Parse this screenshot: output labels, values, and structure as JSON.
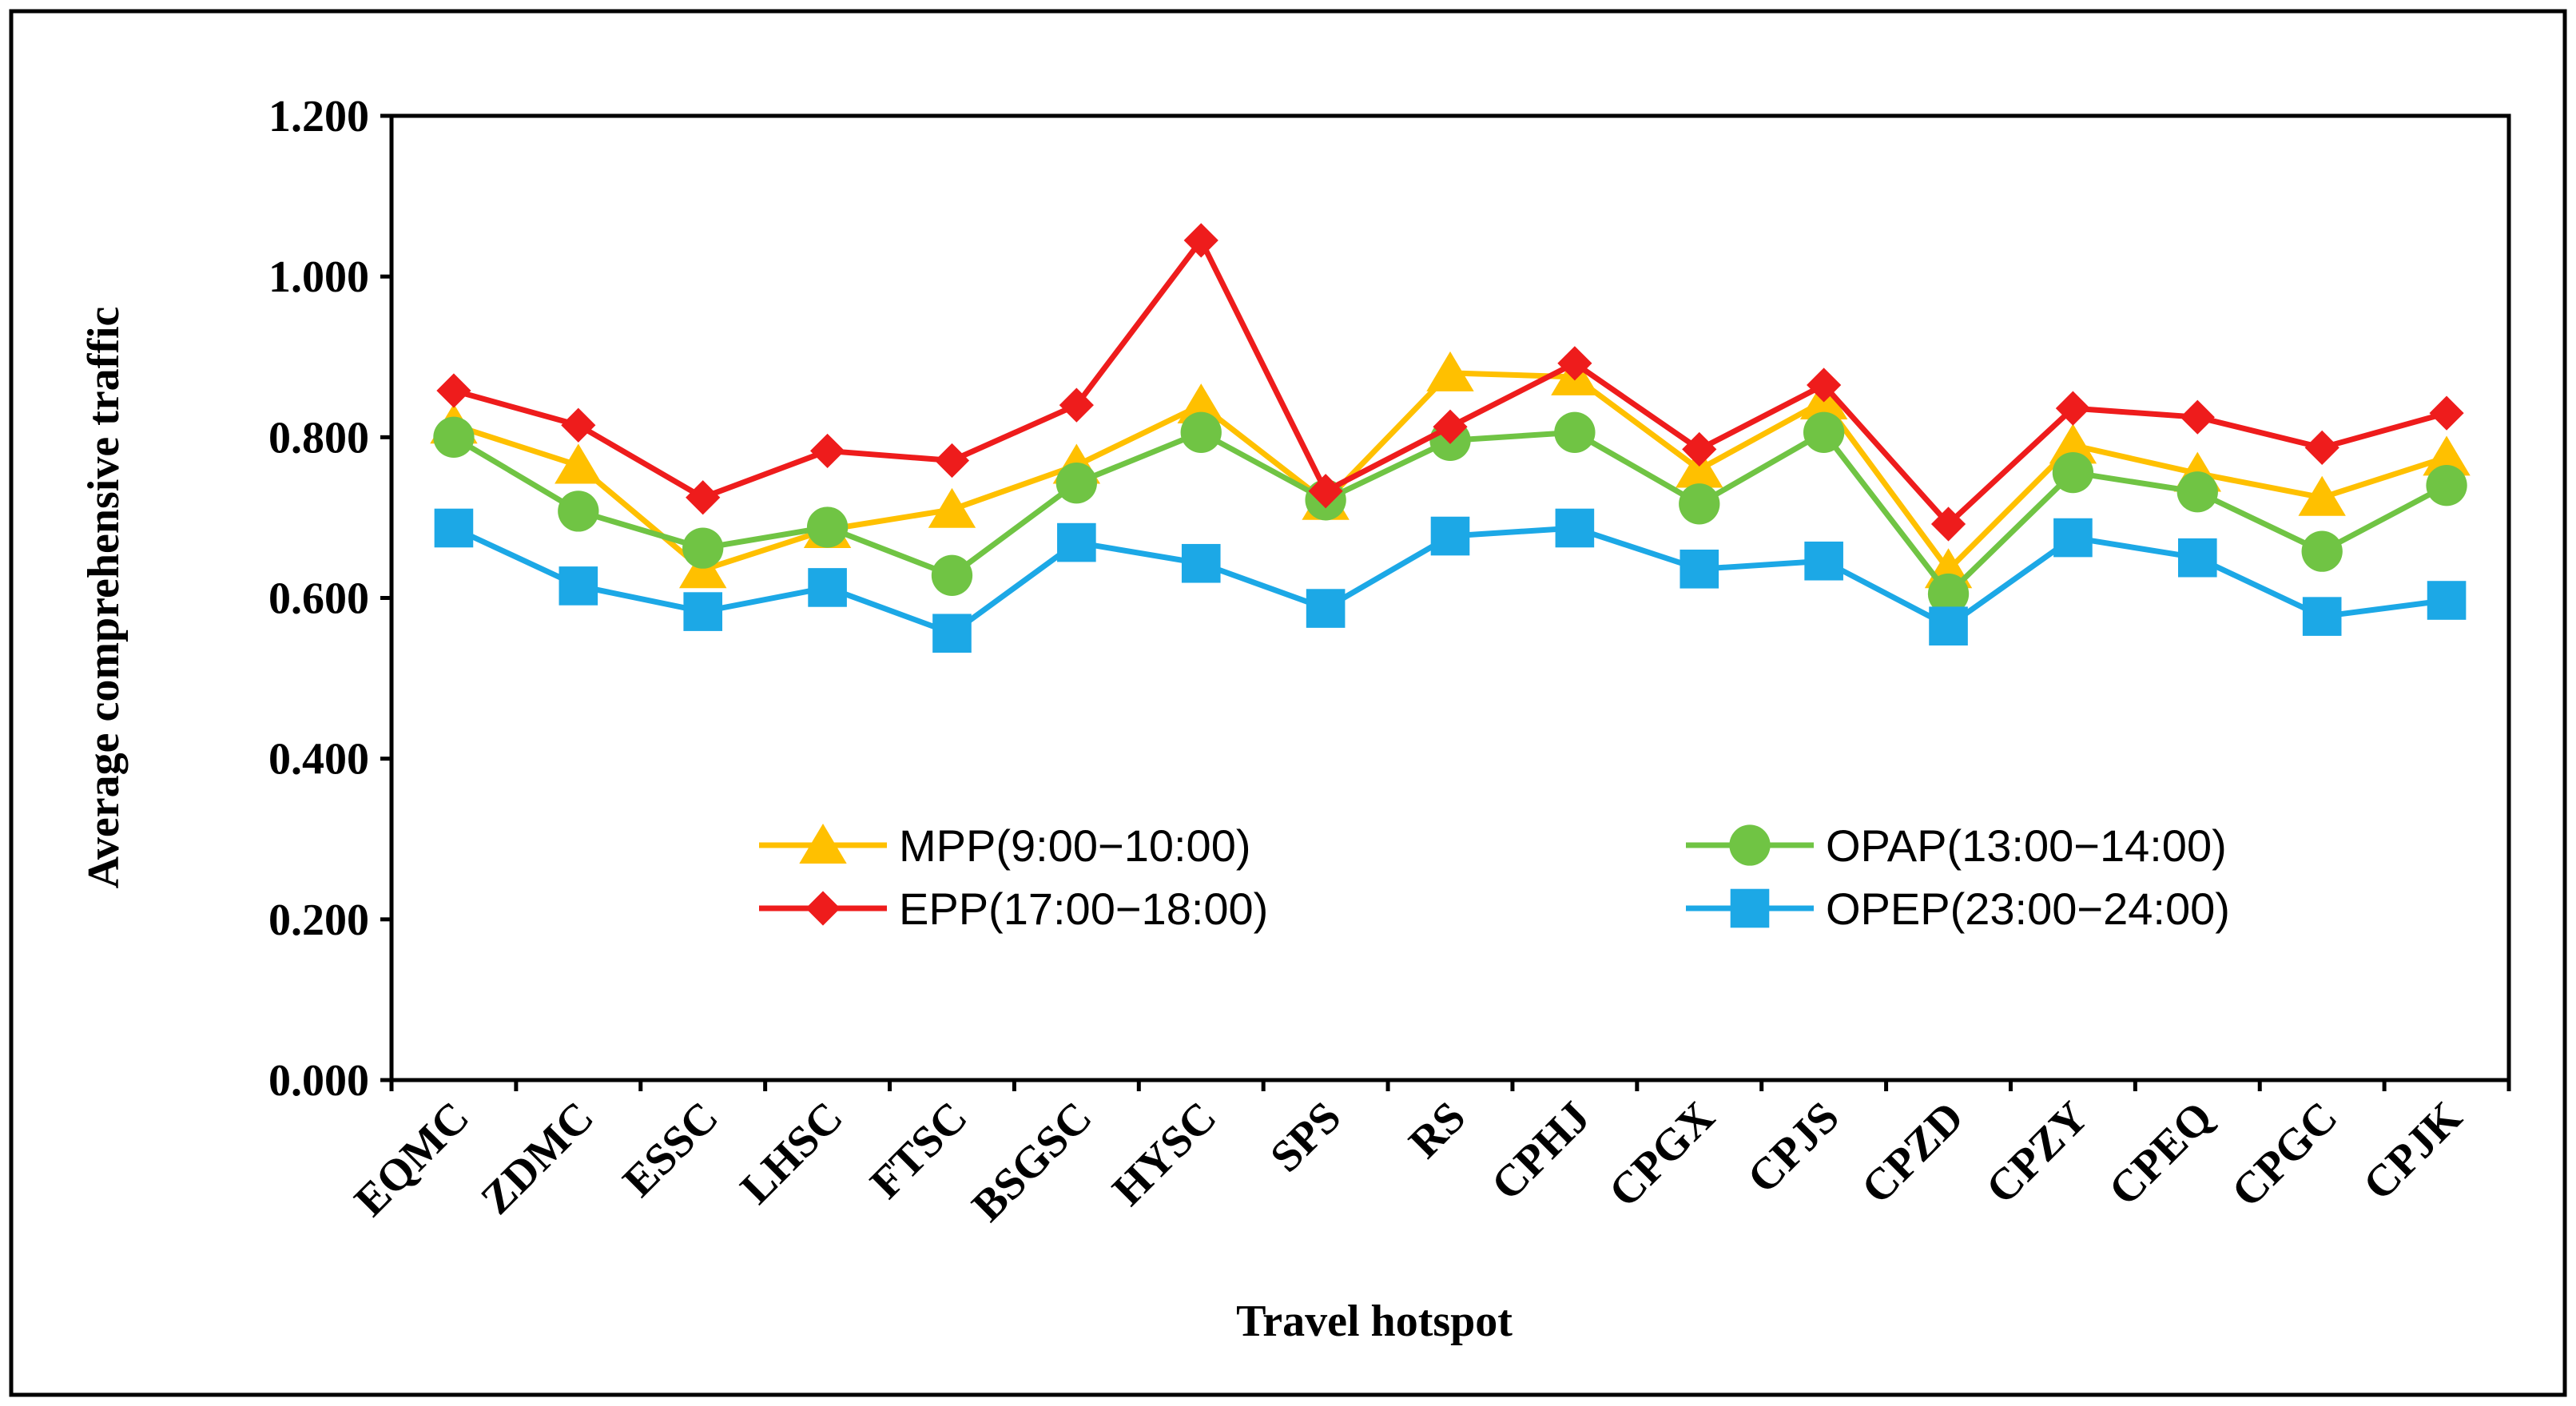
{
  "chart_data": {
    "type": "line",
    "title": "",
    "xlabel": "Travel hotspot",
    "ylabel": "Average comprehensive traffic",
    "ylim": [
      0,
      1.2
    ],
    "yticks": [
      0.0,
      0.2,
      0.4,
      0.6,
      0.8,
      1.0,
      1.2
    ],
    "ytick_labels": [
      "0.000",
      "0.200",
      "0.400",
      "0.600",
      "0.800",
      "1.000",
      "1.200"
    ],
    "categories": [
      "EQMC",
      "ZDMC",
      "ESSC",
      "LHSC",
      "FTSC",
      "BSGSC",
      "HYSC",
      "SPS",
      "RS",
      "CPHJ",
      "CPGX",
      "CPJS",
      "CPZD",
      "CPZY",
      "CPEQ",
      "CPGC",
      "CPJK"
    ],
    "legend_position": "center",
    "grid": false,
    "series": [
      {
        "name": "MPP(9:00−10:00)",
        "color": "#FFC000",
        "marker": "triangle",
        "values": [
          0.815,
          0.765,
          0.635,
          0.685,
          0.71,
          0.765,
          0.84,
          0.72,
          0.88,
          0.875,
          0.76,
          0.845,
          0.635,
          0.79,
          0.755,
          0.725,
          0.775
        ]
      },
      {
        "name": "OPAP(13:00−14:00)",
        "color": "#70C444",
        "marker": "circle",
        "values": [
          0.8,
          0.708,
          0.662,
          0.688,
          0.628,
          0.743,
          0.806,
          0.722,
          0.796,
          0.806,
          0.717,
          0.806,
          0.605,
          0.756,
          0.732,
          0.658,
          0.74
        ]
      },
      {
        "name": "EPP(17:00−18:00)",
        "color": "#EE1C1C",
        "marker": "diamond",
        "values": [
          0.858,
          0.815,
          0.725,
          0.783,
          0.771,
          0.84,
          1.045,
          0.733,
          0.813,
          0.892,
          0.785,
          0.865,
          0.692,
          0.836,
          0.825,
          0.787,
          0.83
        ]
      },
      {
        "name": "OPEP(23:00−24:00)",
        "color": "#1CA8E6",
        "marker": "square",
        "values": [
          0.687,
          0.615,
          0.583,
          0.613,
          0.556,
          0.669,
          0.643,
          0.587,
          0.677,
          0.687,
          0.636,
          0.646,
          0.565,
          0.675,
          0.65,
          0.577,
          0.597
        ]
      }
    ]
  }
}
